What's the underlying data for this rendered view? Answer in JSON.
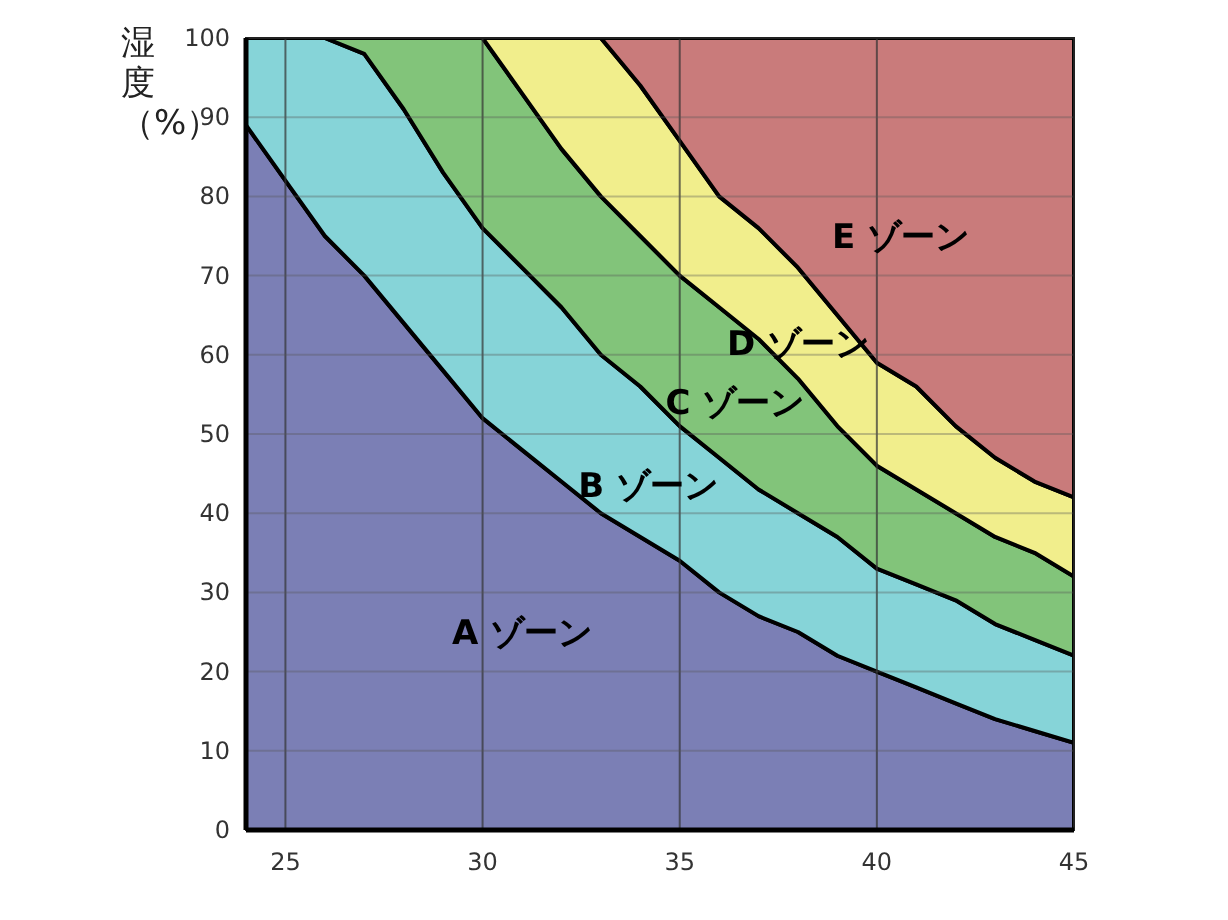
{
  "chart_data": {
    "type": "area",
    "stacked": true,
    "ylabel": "湿度（%）",
    "xlim": [
      24,
      45
    ],
    "ylim": [
      0,
      100
    ],
    "xticks": [
      25,
      30,
      35,
      40,
      45
    ],
    "yticks": [
      0,
      10,
      20,
      30,
      40,
      50,
      60,
      70,
      80,
      90,
      100
    ],
    "grid": true,
    "x": [
      24,
      25,
      26,
      27,
      28,
      29,
      30,
      31,
      32,
      33,
      34,
      35,
      36,
      37,
      38,
      39,
      40,
      41,
      42,
      43,
      44,
      45
    ],
    "series": [
      {
        "name": "A ゾーン",
        "color": "#7b7fb5",
        "values": [
          89,
          82,
          75,
          70,
          64,
          58,
          52,
          48,
          44,
          40,
          37,
          34,
          30,
          27,
          25,
          22,
          20,
          18,
          16,
          14,
          12.5,
          11
        ]
      },
      {
        "name": "B ゾーン",
        "color": "#86d4d8",
        "values": [
          11,
          18,
          25,
          28,
          27,
          25,
          24,
          23,
          22,
          20,
          19,
          17,
          17,
          16,
          15,
          15,
          13,
          13,
          13,
          12,
          11.5,
          11
        ]
      },
      {
        "name": "C ゾーン",
        "color": "#82c47a",
        "values": [
          0,
          0,
          0,
          2,
          9,
          17,
          24,
          22,
          20,
          20,
          19,
          19,
          19,
          19,
          17,
          14,
          13,
          12,
          11,
          11,
          11,
          10
        ]
      },
      {
        "name": "D ゾーン",
        "color": "#f1ee8c",
        "values": [
          0,
          0,
          0,
          0,
          0,
          0,
          0,
          7,
          14,
          20,
          19,
          17,
          14,
          14,
          14,
          14,
          13,
          13,
          11,
          10,
          9,
          10
        ]
      },
      {
        "name": "E ゾーン",
        "color": "#c97b7b",
        "values": [
          0,
          0,
          0,
          0,
          0,
          0,
          0,
          0,
          0,
          0,
          6,
          13,
          20,
          24,
          29,
          35,
          41,
          44,
          49,
          53,
          56,
          58
        ]
      }
    ]
  }
}
